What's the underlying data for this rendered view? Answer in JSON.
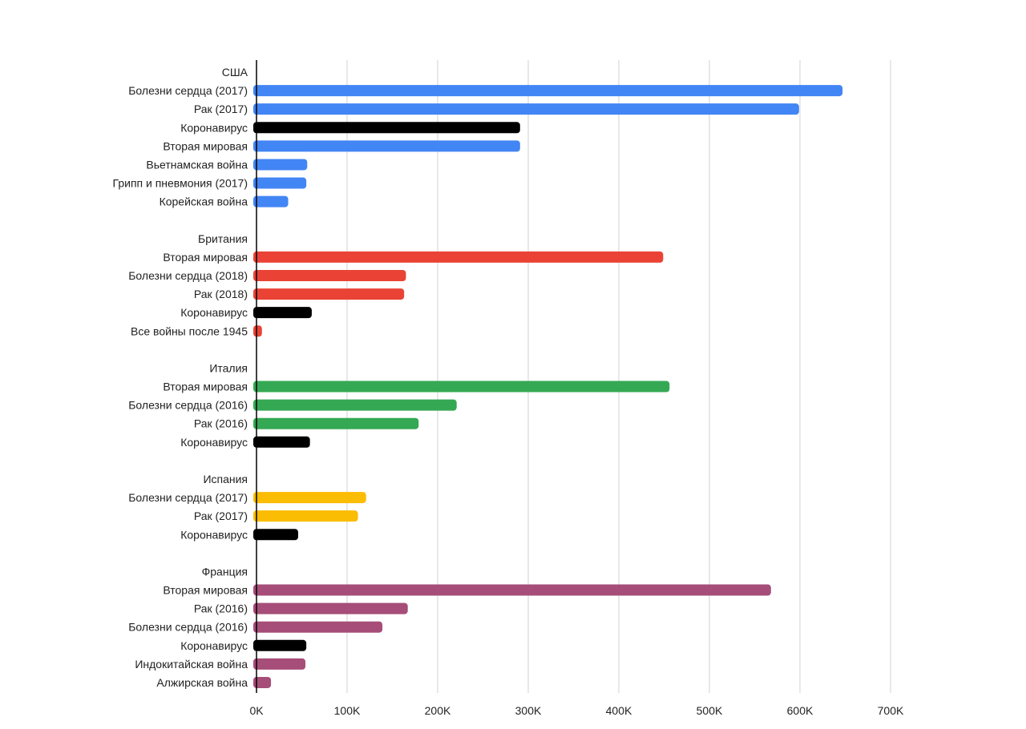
{
  "chart_data": {
    "type": "bar",
    "orientation": "horizontal",
    "title": "",
    "xlabel": "",
    "ylabel": "",
    "xlim": [
      0,
      700000
    ],
    "x_ticks": [
      "0K",
      "100K",
      "200K",
      "300K",
      "400K",
      "500K",
      "600K",
      "700K"
    ],
    "grid": true,
    "groups": [
      {
        "name": "США",
        "color": "#4285f4",
        "items": [
          {
            "label": "Болезни сердца (2017)",
            "value": 647000
          },
          {
            "label": "Рак (2017)",
            "value": 599000
          },
          {
            "label": "Коронавирус",
            "value": 291000,
            "color": "#000000"
          },
          {
            "label": "Вторая мировая",
            "value": 291000
          },
          {
            "label": "Вьетнамская война",
            "value": 56000
          },
          {
            "label": "Грипп и пневмония (2017)",
            "value": 55000
          },
          {
            "label": "Корейская война",
            "value": 35000
          }
        ]
      },
      {
        "name": "Британия",
        "color": "#ea4335",
        "items": [
          {
            "label": "Вторая мировая",
            "value": 449000
          },
          {
            "label": "Болезни сердца (2018)",
            "value": 165000
          },
          {
            "label": "Рак (2018)",
            "value": 163000
          },
          {
            "label": "Коронавирус",
            "value": 61000,
            "color": "#000000"
          },
          {
            "label": "Все войны после 1945",
            "value": 6000
          }
        ]
      },
      {
        "name": "Италия",
        "color": "#34a853",
        "items": [
          {
            "label": "Вторая мировая",
            "value": 456000
          },
          {
            "label": "Болезни сердца (2016)",
            "value": 221000
          },
          {
            "label": "Рак (2016)",
            "value": 179000
          },
          {
            "label": "Коронавирус",
            "value": 59000,
            "color": "#000000"
          }
        ]
      },
      {
        "name": "Испания",
        "color": "#fbbc04",
        "items": [
          {
            "label": "Болезни сердца (2017)",
            "value": 121000
          },
          {
            "label": "Рак (2017)",
            "value": 112000
          },
          {
            "label": "Коронавирус",
            "value": 46000,
            "color": "#000000"
          }
        ]
      },
      {
        "name": "Франция",
        "color": "#a64d79",
        "items": [
          {
            "label": "Вторая мировая",
            "value": 568000
          },
          {
            "label": "Рак (2016)",
            "value": 167000
          },
          {
            "label": "Болезни сердца (2016)",
            "value": 139000
          },
          {
            "label": "Коронавирус",
            "value": 55000,
            "color": "#000000"
          },
          {
            "label": "Индокитайская война",
            "value": 54000
          },
          {
            "label": "Алжирская война",
            "value": 16000
          }
        ]
      }
    ]
  }
}
